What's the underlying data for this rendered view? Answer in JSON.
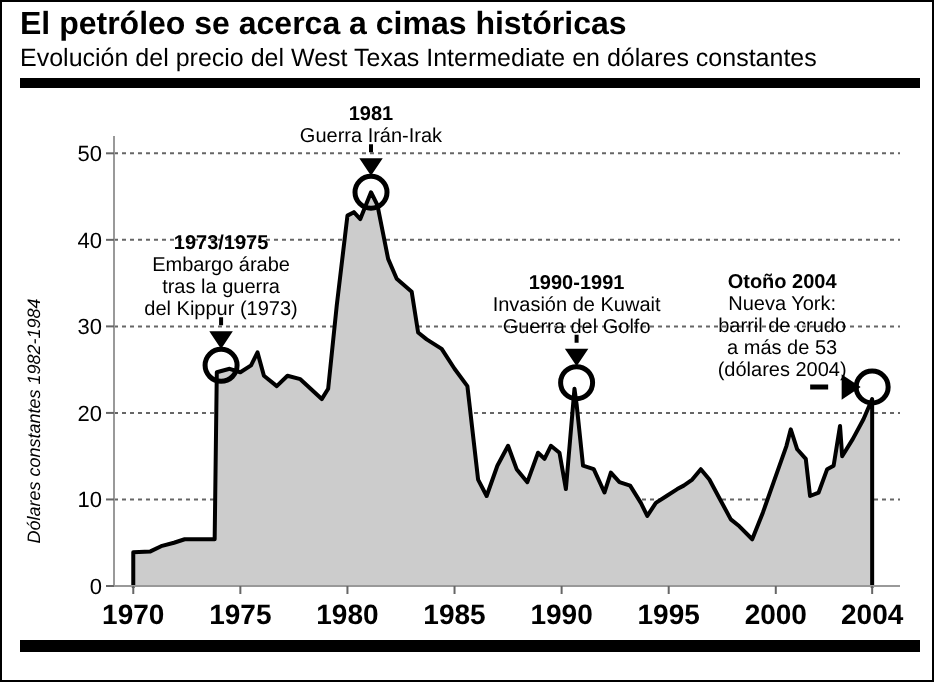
{
  "chart_data": {
    "type": "area",
    "title": "El petróleo se acerca a cimas históricas",
    "subtitle": "Evolución del precio del West Texas Intermediate en dólares constantes",
    "ylabel": "Dólares constantes 1982-1984",
    "x": [
      1970,
      1970,
      1970.8,
      1971.3,
      1971.9,
      1972.4,
      1973.8,
      1973.9,
      1974.5,
      1975.0,
      1975.5,
      1975.8,
      1976.1,
      1976.7,
      1977.2,
      1977.8,
      1978.8,
      1979.1,
      1979.5,
      1980.0,
      1980.3,
      1980.6,
      1981.1,
      1981.4,
      1981.9,
      1982.3,
      1983.0,
      1983.3,
      1983.7,
      1984.4,
      1985.0,
      1985.6,
      1986.1,
      1986.5,
      1987.0,
      1987.5,
      1987.9,
      1988.4,
      1988.9,
      1989.2,
      1989.5,
      1989.9,
      1990.2,
      1990.6,
      1990.7,
      1991.0,
      1991.5,
      1992.0,
      1992.3,
      1992.7,
      1993.2,
      1993.7,
      1994.0,
      1994.4,
      1994.9,
      1995.4,
      1995.7,
      1996.1,
      1996.5,
      1996.9,
      1997.4,
      1997.9,
      1998.3,
      1998.9,
      1999.4,
      1999.9,
      2000.5,
      2000.7,
      2001.0,
      2001.4,
      2001.6,
      2002.0,
      2002.4,
      2002.7,
      2003.0,
      2003.1,
      2003.6,
      2004.1,
      2004.5,
      2004.5
    ],
    "series": [
      {
        "color": "#cccccc",
        "values": [
          0,
          3.9,
          4.0,
          4.6,
          5.0,
          5.4,
          5.4,
          24.7,
          25.1,
          24.7,
          25.5,
          27,
          24.3,
          23.1,
          24.3,
          23.9,
          21.6,
          22.8,
          32.4,
          42.8,
          43.2,
          42.4,
          45.5,
          44,
          37.8,
          35.5,
          34,
          29.3,
          28.5,
          27.4,
          25.1,
          23.1,
          12.3,
          10.4,
          13.9,
          16.2,
          13.5,
          12,
          15.4,
          14.7,
          16.2,
          15.4,
          11.2,
          22.8,
          21,
          13.9,
          13.5,
          10.8,
          13.1,
          12,
          11.6,
          9.6,
          8.1,
          9.6,
          10.4,
          11.2,
          11.6,
          12.3,
          13.5,
          12.3,
          10,
          7.7,
          6.9,
          5.4,
          8.5,
          12,
          16.2,
          18.1,
          15.8,
          14.7,
          10.4,
          10.8,
          13.5,
          13.9,
          18.5,
          15,
          17,
          19.3,
          21.6,
          0
        ]
      }
    ],
    "xlim": [
      1969.1,
      2005.8
    ],
    "ylim": [
      0,
      52
    ],
    "xticks": [
      1970,
      1975,
      1980,
      1985,
      1990,
      1995,
      2000,
      {
        "value": 2004.5,
        "label": "2004"
      }
    ],
    "yticks": [
      0,
      10,
      20,
      30,
      40,
      50
    ],
    "grid": "y",
    "annotations": [
      {
        "text": "1973/1975\nEmbargo árabe\ntras la guerra\ndel Kippur (1973)",
        "x": 1974.1,
        "y": 25.5
      },
      {
        "text": "1981\nGuerra Irán-Irak",
        "x": 1981.1,
        "y": 45.5
      },
      {
        "text": "1990-1991\nInvasión de Kuwait\nGuerra del Golfo",
        "x": 1990.7,
        "y": 23.5
      },
      {
        "text": "Otoño 2004\nNueva York:\nbarril de crudo\na más de 53\n(dólares 2004)",
        "x": 2004.5,
        "y": 23
      }
    ]
  }
}
